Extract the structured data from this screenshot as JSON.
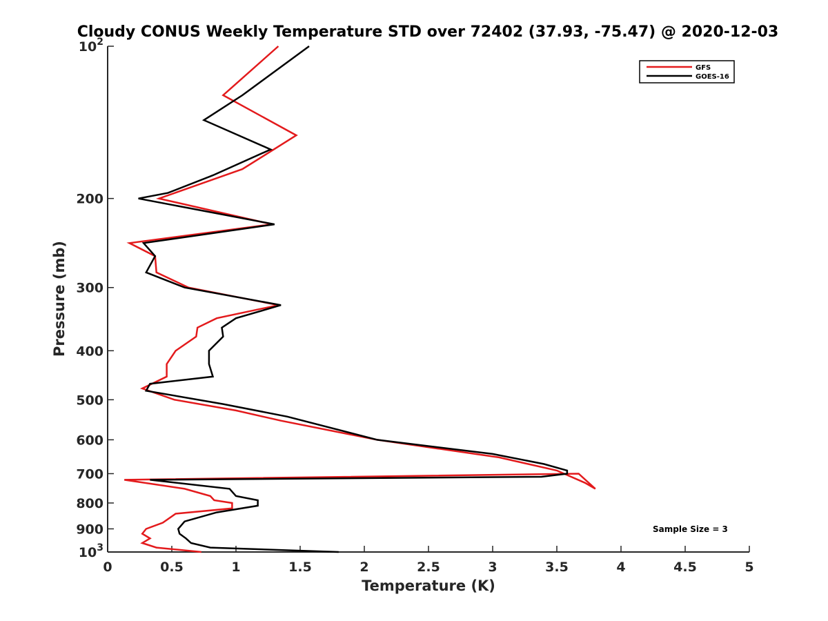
{
  "chart_data": {
    "type": "line",
    "title": "Cloudy CONUS Weekly Temperature STD over 72402 (37.93, -75.47) @ 2020-12-03",
    "xlabel": "Temperature (K)",
    "ylabel": "Pressure (mb)",
    "xlim": [
      0,
      5
    ],
    "ylim": [
      100,
      1000
    ],
    "y_scale": "log",
    "y_reversed": true,
    "grid": false,
    "legend_position": "top-right",
    "x_ticks": [
      0,
      0.5,
      1,
      1.5,
      2,
      2.5,
      3,
      3.5,
      4,
      4.5,
      5
    ],
    "x_tick_labels": [
      "0",
      "0.5",
      "1",
      "1.5",
      "2",
      "2.5",
      "3",
      "3.5",
      "4",
      "4.5",
      "5"
    ],
    "y_ticks": [
      100,
      200,
      300,
      400,
      500,
      600,
      700,
      800,
      900,
      1000
    ],
    "y_tick_labels": [
      "10^2",
      "200",
      "300",
      "400",
      "500",
      "600",
      "700",
      "800",
      "900",
      "10^3"
    ],
    "annotation": "Sample Size = 3",
    "series": [
      {
        "name": "GFS",
        "color": "#e31a1c",
        "points": [
          [
            1.33,
            100
          ],
          [
            0.9,
            125
          ],
          [
            1.47,
            150
          ],
          [
            1.05,
            175
          ],
          [
            0.65,
            190
          ],
          [
            0.4,
            200
          ],
          [
            1.28,
            225
          ],
          [
            0.17,
            245
          ],
          [
            0.37,
            260
          ],
          [
            0.38,
            280
          ],
          [
            0.63,
            300
          ],
          [
            1.33,
            325
          ],
          [
            0.85,
            345
          ],
          [
            0.7,
            360
          ],
          [
            0.69,
            375
          ],
          [
            0.53,
            400
          ],
          [
            0.46,
            425
          ],
          [
            0.46,
            450
          ],
          [
            0.27,
            475
          ],
          [
            0.52,
            500
          ],
          [
            1.0,
            525
          ],
          [
            1.35,
            550
          ],
          [
            2.1,
            600
          ],
          [
            3.05,
            650
          ],
          [
            3.5,
            690
          ],
          [
            3.72,
            730
          ],
          [
            3.8,
            750
          ],
          [
            3.67,
            700
          ],
          [
            0.13,
            720
          ],
          [
            0.6,
            750
          ],
          [
            0.8,
            775
          ],
          [
            0.83,
            790
          ],
          [
            0.97,
            800
          ],
          [
            0.97,
            820
          ],
          [
            0.53,
            840
          ],
          [
            0.43,
            875
          ],
          [
            0.3,
            900
          ],
          [
            0.27,
            920
          ],
          [
            0.33,
            940
          ],
          [
            0.27,
            960
          ],
          [
            0.38,
            980
          ],
          [
            0.73,
            1000
          ]
        ]
      },
      {
        "name": "GOES-16",
        "color": "#000000",
        "points": [
          [
            1.57,
            100
          ],
          [
            1.05,
            125
          ],
          [
            0.75,
            140
          ],
          [
            1.27,
            160
          ],
          [
            0.82,
            180
          ],
          [
            0.47,
            195
          ],
          [
            0.24,
            200
          ],
          [
            1.3,
            225
          ],
          [
            0.28,
            245
          ],
          [
            0.37,
            260
          ],
          [
            0.3,
            280
          ],
          [
            0.6,
            300
          ],
          [
            1.35,
            325
          ],
          [
            1.0,
            345
          ],
          [
            0.89,
            360
          ],
          [
            0.9,
            375
          ],
          [
            0.79,
            400
          ],
          [
            0.79,
            425
          ],
          [
            0.82,
            450
          ],
          [
            0.33,
            465
          ],
          [
            0.3,
            480
          ],
          [
            0.9,
            510
          ],
          [
            1.4,
            540
          ],
          [
            2.1,
            600
          ],
          [
            3.0,
            640
          ],
          [
            3.4,
            670
          ],
          [
            3.58,
            690
          ],
          [
            3.58,
            700
          ],
          [
            3.38,
            710
          ],
          [
            0.33,
            720
          ],
          [
            0.95,
            750
          ],
          [
            1.0,
            775
          ],
          [
            1.17,
            790
          ],
          [
            1.17,
            810
          ],
          [
            0.85,
            835
          ],
          [
            0.6,
            870
          ],
          [
            0.55,
            900
          ],
          [
            0.56,
            920
          ],
          [
            0.61,
            940
          ],
          [
            0.65,
            960
          ],
          [
            0.8,
            980
          ],
          [
            1.8,
            1000
          ]
        ]
      }
    ]
  }
}
